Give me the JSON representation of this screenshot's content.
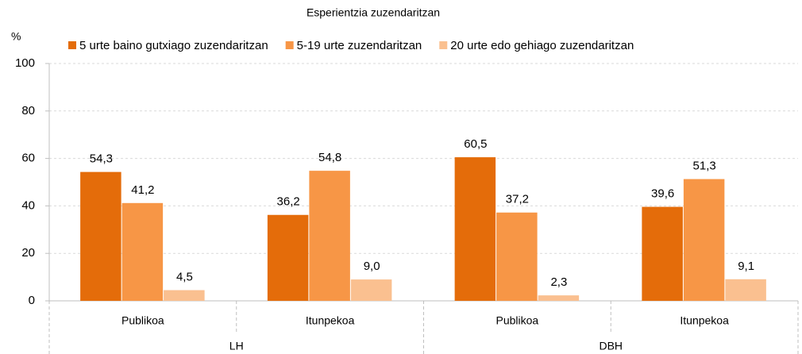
{
  "chart_data": {
    "type": "bar",
    "title": "Esperientzia zuzendaritzan",
    "ylabel": "%",
    "categories": [
      "Publikoa",
      "Itunpekoa",
      "Publikoa",
      "Itunpekoa"
    ],
    "groups": [
      "LH",
      "DBH"
    ],
    "series": [
      {
        "name": "5 urte baino gutxiago zuzendaritzan",
        "color": "#e46c0a",
        "values": [
          54.3,
          36.2,
          60.5,
          39.6
        ],
        "value_labels": [
          "54,3",
          "36,2",
          "60,5",
          "39,6"
        ]
      },
      {
        "name": "5-19 urte zuzendaritzan",
        "color": "#f79646",
        "values": [
          41.2,
          54.8,
          37.2,
          51.3
        ],
        "value_labels": [
          "41,2",
          "54,8",
          "37,2",
          "51,3"
        ]
      },
      {
        "name": "20 urte edo gehiago zuzendaritzan",
        "color": "#fac090",
        "values": [
          4.5,
          9.0,
          2.3,
          9.1
        ],
        "value_labels": [
          "4,5",
          "9,0",
          "2,3",
          "9,1"
        ]
      }
    ],
    "ylim": [
      0,
      100
    ],
    "yticks": [
      0,
      20,
      40,
      60,
      80,
      100
    ],
    "grid": true
  }
}
